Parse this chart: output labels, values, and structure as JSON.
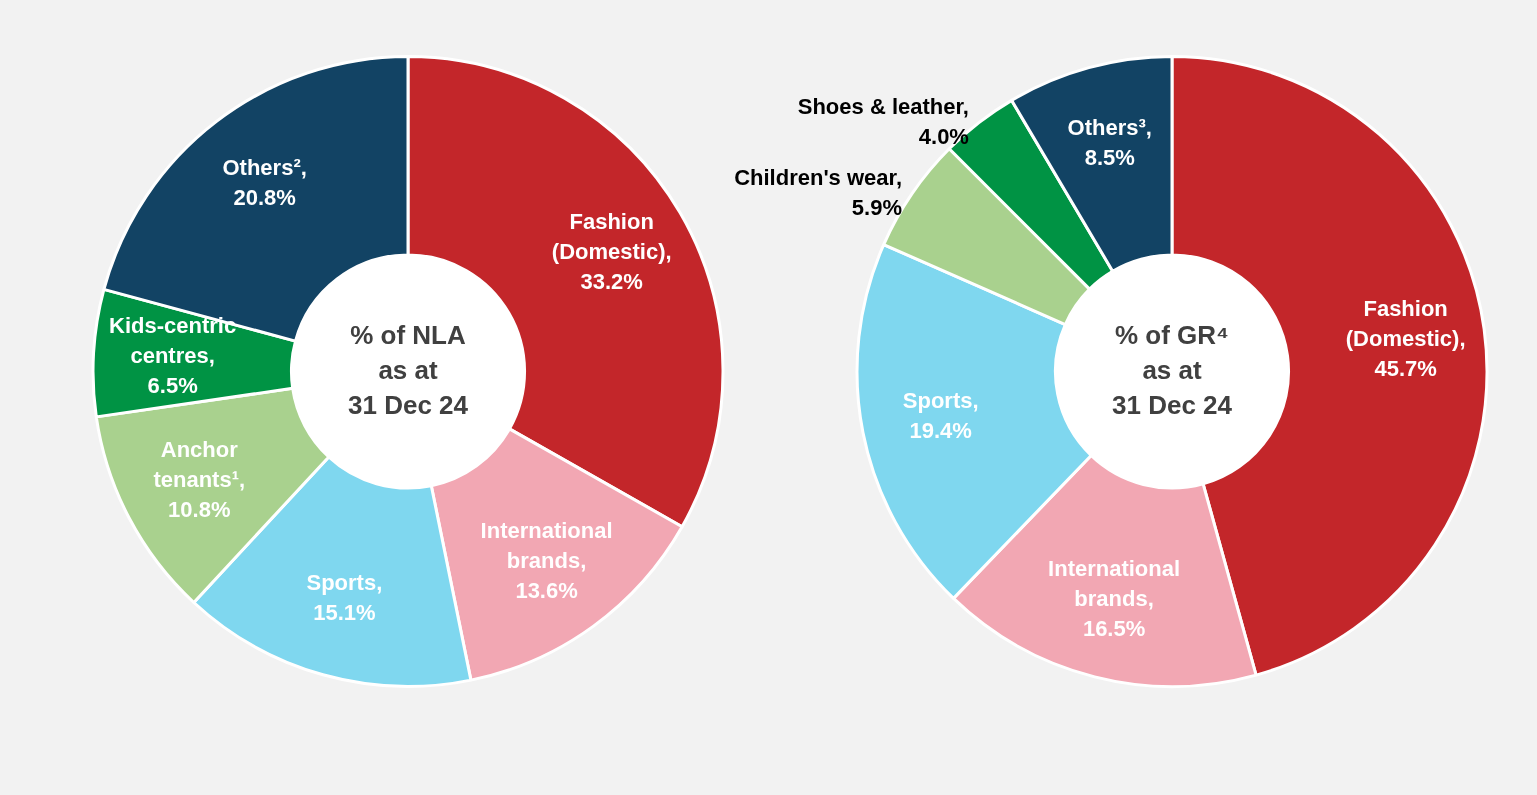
{
  "chart_data": [
    {
      "type": "donut",
      "title": "% of NLA\nas at\n31 Dec 24",
      "categories": [
        "Fashion (Domestic)",
        "International brands",
        "Sports",
        "Anchor tenants¹",
        "Kids-centric centres",
        "Others²"
      ],
      "values": [
        33.2,
        13.6,
        15.1,
        10.8,
        6.5,
        20.8
      ],
      "value_labels": [
        ", 33.2%",
        ", 13.6%",
        ", 15.1%",
        ", 10.8%",
        ", 6.5%",
        ", 20.8%"
      ],
      "colors": [
        "#c3262a",
        "#f2a7b3",
        "#7fd7ef",
        "#a9d18e",
        "#009344",
        "#124364"
      ],
      "legend": false
    },
    {
      "type": "donut",
      "title": "% of GR⁴\nas at\n31 Dec 24",
      "categories": [
        "Fashion (Domestic)",
        "International brands",
        "Sports",
        "Children's wear",
        "Shoes & leather",
        "Others³"
      ],
      "values": [
        45.7,
        16.5,
        19.4,
        5.9,
        4.0,
        8.5
      ],
      "value_labels": [
        ", 45.7%",
        ", 16.5%",
        ", 19.4%",
        ", 5.9%",
        ", 4.0%",
        ", 8.5%"
      ],
      "colors": [
        "#c3262a",
        "#f2a7b3",
        "#7fd7ef",
        "#a9d18e",
        "#009344",
        "#124364"
      ],
      "legend": false
    }
  ]
}
